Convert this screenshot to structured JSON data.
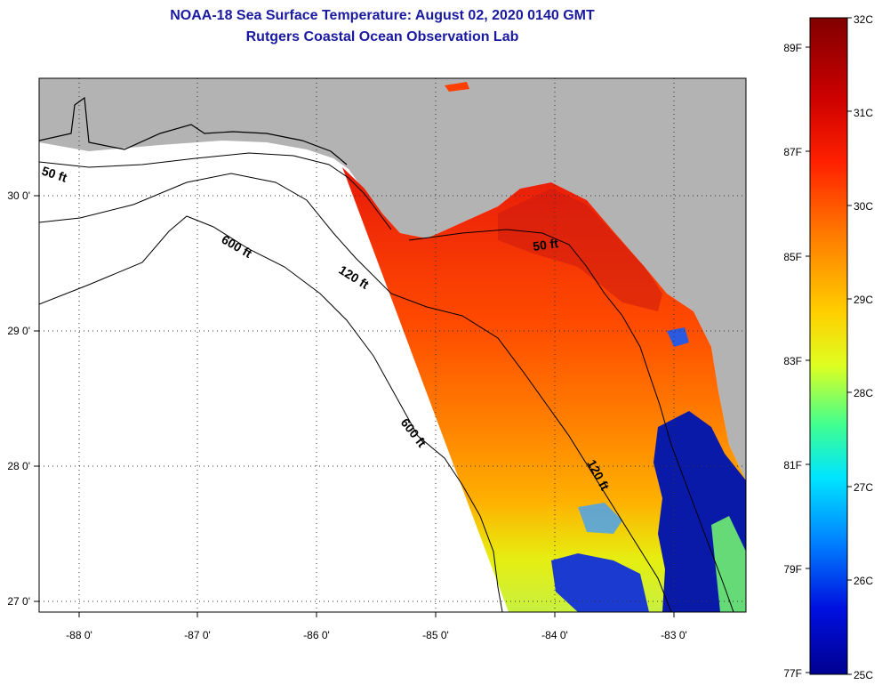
{
  "title": {
    "line1": "NOAA-18 Sea Surface Temperature:  August 02, 2020 0140 GMT",
    "line2": "Rutgers Coastal Ocean Observation Lab"
  },
  "map": {
    "lon_labels": [
      "-88 0'",
      "-87 0'",
      "-86 0'",
      "-85 0'",
      "-84 0'",
      "-83 0'"
    ],
    "lat_labels": [
      "30 0'",
      "29 0'",
      "28 0'",
      "27 0'"
    ],
    "contour_labels": [
      "50 ft",
      "600 ft",
      "120 ft",
      "50 ft",
      "600 ft",
      "120 ft"
    ]
  },
  "colorbar": {
    "celsius_labels": [
      "32C",
      "31C",
      "30C",
      "29C",
      "28C",
      "27C",
      "26C",
      "25C"
    ],
    "fahrenheit_labels": [
      "89F",
      "87F",
      "85F",
      "83F",
      "81F",
      "79F",
      "77F"
    ],
    "colors": {
      "max": "#800000",
      "high": "#ff2000",
      "mid_high": "#ff9900",
      "mid": "#ffff00",
      "mid_low": "#00ffff",
      "low": "#0060ff",
      "min": "#000090"
    }
  },
  "colors": {
    "land": "#b3b3b3",
    "ocean_nodata": "#ffffff",
    "title": "#1a1aa0"
  }
}
